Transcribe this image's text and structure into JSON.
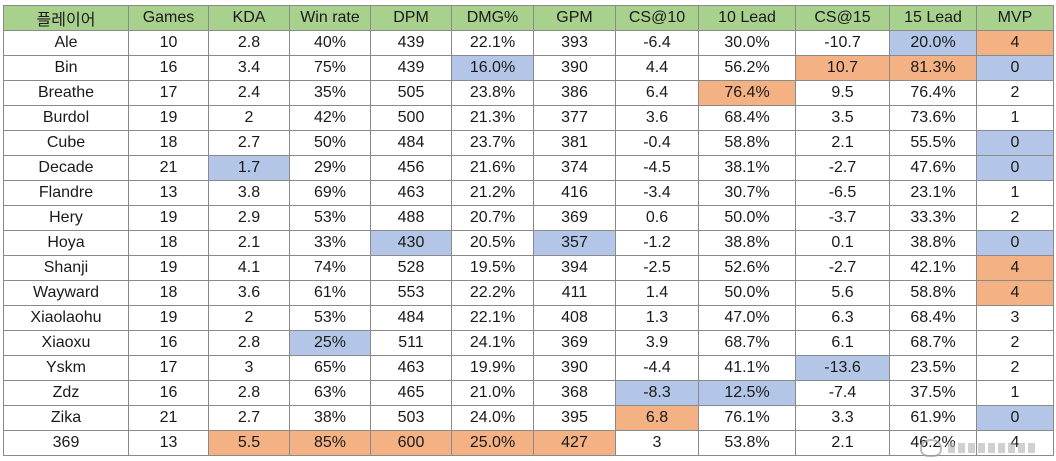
{
  "columns": [
    "플레이어",
    "Games",
    "KDA",
    "Win rate",
    "DPM",
    "DMG%",
    "GPM",
    "CS@10",
    "10 Lead",
    "CS@15",
    "15 Lead",
    "MVP"
  ],
  "rows": [
    {
      "cells": [
        "Ale",
        "10",
        "2.8",
        "40%",
        "439",
        "22.1%",
        "393",
        "-6.4",
        "30.0%",
        "-10.7",
        "20.0%",
        "4"
      ],
      "highlights": [
        "",
        "",
        "",
        "",
        "",
        "",
        "",
        "",
        "",
        "",
        "blue",
        "orange"
      ]
    },
    {
      "cells": [
        "Bin",
        "16",
        "3.4",
        "75%",
        "439",
        "16.0%",
        "390",
        "4.4",
        "56.2%",
        "10.7",
        "81.3%",
        "0"
      ],
      "highlights": [
        "",
        "",
        "",
        "",
        "",
        "blue",
        "",
        "",
        "",
        "orange",
        "orange",
        "blue"
      ]
    },
    {
      "cells": [
        "Breathe",
        "17",
        "2.4",
        "35%",
        "505",
        "23.8%",
        "386",
        "6.4",
        "76.4%",
        "9.5",
        "76.4%",
        "2"
      ],
      "highlights": [
        "",
        "",
        "",
        "",
        "",
        "",
        "",
        "",
        "orange",
        "",
        "",
        ""
      ]
    },
    {
      "cells": [
        "Burdol",
        "19",
        "2",
        "42%",
        "500",
        "21.3%",
        "377",
        "3.6",
        "68.4%",
        "3.5",
        "73.6%",
        "1"
      ],
      "highlights": [
        "",
        "",
        "",
        "",
        "",
        "",
        "",
        "",
        "",
        "",
        "",
        ""
      ]
    },
    {
      "cells": [
        "Cube",
        "18",
        "2.7",
        "50%",
        "484",
        "23.7%",
        "381",
        "-0.4",
        "58.8%",
        "2.1",
        "55.5%",
        "0"
      ],
      "highlights": [
        "",
        "",
        "",
        "",
        "",
        "",
        "",
        "",
        "",
        "",
        "",
        "blue"
      ]
    },
    {
      "cells": [
        "Decade",
        "21",
        "1.7",
        "29%",
        "456",
        "21.6%",
        "374",
        "-4.5",
        "38.1%",
        "-2.7",
        "47.6%",
        "0"
      ],
      "highlights": [
        "",
        "",
        "blue",
        "",
        "",
        "",
        "",
        "",
        "",
        "",
        "",
        "blue"
      ]
    },
    {
      "cells": [
        "Flandre",
        "13",
        "3.8",
        "69%",
        "463",
        "21.2%",
        "416",
        "-3.4",
        "30.7%",
        "-6.5",
        "23.1%",
        "1"
      ],
      "highlights": [
        "",
        "",
        "",
        "",
        "",
        "",
        "",
        "",
        "",
        "",
        "",
        ""
      ]
    },
    {
      "cells": [
        "Hery",
        "19",
        "2.9",
        "53%",
        "488",
        "20.7%",
        "369",
        "0.6",
        "50.0%",
        "-3.7",
        "33.3%",
        "2"
      ],
      "highlights": [
        "",
        "",
        "",
        "",
        "",
        "",
        "",
        "",
        "",
        "",
        "",
        ""
      ]
    },
    {
      "cells": [
        "Hoya",
        "18",
        "2.1",
        "33%",
        "430",
        "20.5%",
        "357",
        "-1.2",
        "38.8%",
        "0.1",
        "38.8%",
        "0"
      ],
      "highlights": [
        "",
        "",
        "",
        "",
        "blue",
        "",
        "blue",
        "",
        "",
        "",
        "",
        "blue"
      ]
    },
    {
      "cells": [
        "Shanji",
        "19",
        "4.1",
        "74%",
        "528",
        "19.5%",
        "394",
        "-2.5",
        "52.6%",
        "-2.7",
        "42.1%",
        "4"
      ],
      "highlights": [
        "",
        "",
        "",
        "",
        "",
        "",
        "",
        "",
        "",
        "",
        "",
        "orange"
      ]
    },
    {
      "cells": [
        "Wayward",
        "18",
        "3.6",
        "61%",
        "553",
        "22.2%",
        "411",
        "1.4",
        "50.0%",
        "5.6",
        "58.8%",
        "4"
      ],
      "highlights": [
        "",
        "",
        "",
        "",
        "",
        "",
        "",
        "",
        "",
        "",
        "",
        "orange"
      ]
    },
    {
      "cells": [
        "Xiaolaohu",
        "19",
        "2",
        "53%",
        "484",
        "22.1%",
        "408",
        "1.3",
        "47.0%",
        "6.3",
        "68.4%",
        "3"
      ],
      "highlights": [
        "",
        "",
        "",
        "",
        "",
        "",
        "",
        "",
        "",
        "",
        "",
        ""
      ]
    },
    {
      "cells": [
        "Xiaoxu",
        "16",
        "2.8",
        "25%",
        "511",
        "24.1%",
        "369",
        "3.9",
        "68.7%",
        "6.1",
        "68.7%",
        "2"
      ],
      "highlights": [
        "",
        "",
        "",
        "blue",
        "",
        "",
        "",
        "",
        "",
        "",
        "",
        ""
      ]
    },
    {
      "cells": [
        "Yskm",
        "17",
        "3",
        "65%",
        "463",
        "19.9%",
        "390",
        "-4.4",
        "41.1%",
        "-13.6",
        "23.5%",
        "2"
      ],
      "highlights": [
        "",
        "",
        "",
        "",
        "",
        "",
        "",
        "",
        "",
        "blue",
        "",
        ""
      ]
    },
    {
      "cells": [
        "Zdz",
        "16",
        "2.8",
        "63%",
        "465",
        "21.0%",
        "368",
        "-8.3",
        "12.5%",
        "-7.4",
        "37.5%",
        "1"
      ],
      "highlights": [
        "",
        "",
        "",
        "",
        "",
        "",
        "",
        "blue",
        "blue",
        "",
        "",
        ""
      ]
    },
    {
      "cells": [
        "Zika",
        "21",
        "2.7",
        "38%",
        "503",
        "24.0%",
        "395",
        "6.8",
        "76.1%",
        "3.3",
        "61.9%",
        "0"
      ],
      "highlights": [
        "",
        "",
        "",
        "",
        "",
        "",
        "",
        "orange",
        "",
        "",
        "",
        "blue"
      ]
    },
    {
      "cells": [
        "369",
        "13",
        "5.5",
        "85%",
        "600",
        "25.0%",
        "427",
        "3",
        "53.8%",
        "2.1",
        "46.2%",
        "4"
      ],
      "highlights": [
        "",
        "",
        "orange",
        "orange",
        "orange",
        "orange",
        "orange",
        "",
        "",
        "",
        "",
        ""
      ]
    }
  ],
  "colors": {
    "header": "#a9d18e",
    "blue": "#b4c6e7",
    "orange": "#f4b183"
  }
}
